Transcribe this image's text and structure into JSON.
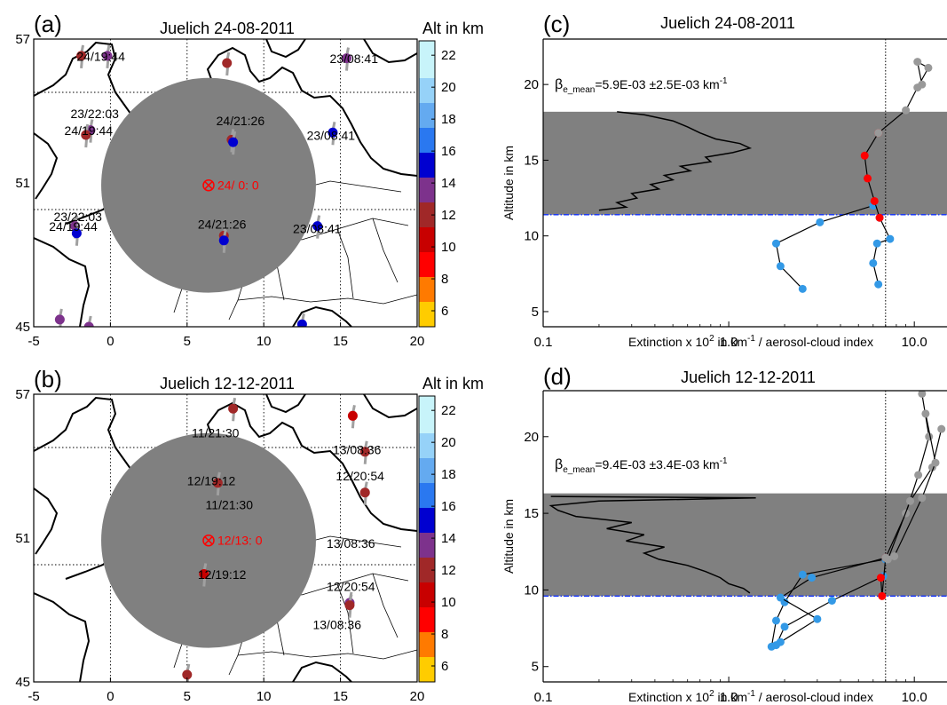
{
  "chart_data": [
    {
      "panel": "(a)",
      "type": "scatter",
      "title": "Juelich 24-08-2011",
      "colorbar_label": "Alt in km",
      "colorbar_ticks": [
        6,
        8,
        10,
        12,
        14,
        16,
        18,
        20,
        22
      ],
      "x_ticks": [
        -5,
        0,
        5,
        10,
        15,
        20
      ],
      "y_ticks": [
        45,
        51,
        57
      ],
      "xlim": [
        -5,
        20
      ],
      "ylim": [
        45,
        57
      ],
      "center": {
        "lon": 6.4,
        "lat": 50.9,
        "label": "24/ 0: 0",
        "radius_deg": 7
      },
      "points": [
        {
          "lon": -1.9,
          "lat": 56.3,
          "alt": 11
        },
        {
          "lon": -0.2,
          "lat": 56.3,
          "alt": 14
        },
        {
          "lon": 7.6,
          "lat": 56.0,
          "alt": 12
        },
        {
          "lon": 15.4,
          "lat": 56.2,
          "alt": 14
        },
        {
          "lon": -1.3,
          "lat": 53.2,
          "alt": 14
        },
        {
          "lon": -1.6,
          "lat": 53.0,
          "alt": 12
        },
        {
          "lon": 7.9,
          "lat": 52.8,
          "alt": 12
        },
        {
          "lon": 8.0,
          "lat": 52.7,
          "alt": 16
        },
        {
          "lon": 14.5,
          "lat": 53.1,
          "alt": 16
        },
        {
          "lon": -2.3,
          "lat": 49.2,
          "alt": 14
        },
        {
          "lon": -2.2,
          "lat": 48.9,
          "alt": 16
        },
        {
          "lon": 7.4,
          "lat": 48.8,
          "alt": 12
        },
        {
          "lon": 7.4,
          "lat": 48.6,
          "alt": 16
        },
        {
          "lon": 13.5,
          "lat": 49.2,
          "alt": 16
        },
        {
          "lon": -3.3,
          "lat": 45.3,
          "alt": 14
        },
        {
          "lon": -1.4,
          "lat": 45.0,
          "alt": 14
        },
        {
          "lon": 12.5,
          "lat": 45.1,
          "alt": 16
        }
      ],
      "labels": [
        {
          "lon": -2.2,
          "lat": 56.1,
          "text": "24/19:44"
        },
        {
          "lon": 14.3,
          "lat": 56.0,
          "text": "23/08:41"
        },
        {
          "lon": -2.6,
          "lat": 53.7,
          "text": "23/22:03"
        },
        {
          "lon": -3.0,
          "lat": 53.0,
          "text": "24/19:44"
        },
        {
          "lon": 6.9,
          "lat": 53.4,
          "text": "24/21:26"
        },
        {
          "lon": 12.8,
          "lat": 52.8,
          "text": "23/08:41"
        },
        {
          "lon": -3.7,
          "lat": 49.4,
          "text": "23/22:03"
        },
        {
          "lon": -4.0,
          "lat": 49.0,
          "text": "24/19:44"
        },
        {
          "lon": 5.7,
          "lat": 49.1,
          "text": "24/21:26"
        },
        {
          "lon": 11.9,
          "lat": 48.9,
          "text": "23/08:41"
        }
      ]
    },
    {
      "panel": "(b)",
      "type": "scatter",
      "title": "Juelich 12-12-2011",
      "colorbar_label": "Alt in km",
      "colorbar_ticks": [
        6,
        8,
        10,
        12,
        14,
        16,
        18,
        20,
        22
      ],
      "x_ticks": [
        -5,
        0,
        5,
        10,
        15,
        20
      ],
      "y_ticks": [
        45,
        51,
        57
      ],
      "xlim": [
        -5,
        20
      ],
      "ylim": [
        45,
        57
      ],
      "center": {
        "lon": 6.4,
        "lat": 50.9,
        "label": "12/13: 0",
        "radius_deg": 7
      },
      "points": [
        {
          "lon": 8.0,
          "lat": 56.4,
          "alt": 11
        },
        {
          "lon": 15.8,
          "lat": 56.1,
          "alt": 10
        },
        {
          "lon": 16.6,
          "lat": 54.6,
          "alt": 11
        },
        {
          "lon": 7.0,
          "lat": 53.3,
          "alt": 12
        },
        {
          "lon": 16.6,
          "lat": 52.9,
          "alt": 11
        },
        {
          "lon": 6.1,
          "lat": 49.5,
          "alt": 10
        },
        {
          "lon": 15.6,
          "lat": 48.3,
          "alt": 14
        },
        {
          "lon": 15.6,
          "lat": 48.2,
          "alt": 12
        },
        {
          "lon": 5.0,
          "lat": 45.3,
          "alt": 11
        }
      ],
      "labels": [
        {
          "lon": 5.3,
          "lat": 55.2,
          "text": "11/21:30"
        },
        {
          "lon": 14.5,
          "lat": 54.5,
          "text": "13/08:36"
        },
        {
          "lon": 5.0,
          "lat": 53.2,
          "text": "12/19:12"
        },
        {
          "lon": 14.7,
          "lat": 53.4,
          "text": "12/20:54"
        },
        {
          "lon": 6.2,
          "lat": 52.2,
          "text": "11/21:30"
        },
        {
          "lon": 14.1,
          "lat": 50.6,
          "text": "13/08:36"
        },
        {
          "lon": 5.7,
          "lat": 49.3,
          "text": "12/19:12"
        },
        {
          "lon": 14.1,
          "lat": 48.8,
          "text": "12/20:54"
        },
        {
          "lon": 13.2,
          "lat": 47.2,
          "text": "13/08:36"
        }
      ]
    },
    {
      "panel": "(c)",
      "type": "line",
      "title": "Juelich 24-08-2011",
      "xlabel_main": "Extinction x 10",
      "xlabel_sup": "2",
      "xlabel_tail": " in km",
      "xlabel_sup2": "-1",
      "xlabel_end": " / aerosol-cloud index",
      "ylabel": "Altitude in km",
      "x_scale": "log",
      "xlim": [
        0.1,
        15
      ],
      "ylim": [
        4,
        23
      ],
      "x_ticks": [
        0.1,
        1.0,
        10.0
      ],
      "x_tick_labels": [
        "0.1",
        "1.0",
        "10.0"
      ],
      "y_ticks": [
        5,
        10,
        15,
        20
      ],
      "cloud_band": [
        11.4,
        18.2
      ],
      "cloud_base": 11.4,
      "vline_x": 7.0,
      "annotation": {
        "main": "β",
        "sub": "e_mean",
        "value": "=5.9E-03 ±2.5E-03 km",
        "sup": "-1"
      },
      "extinction_profile": [
        [
          0.2,
          11.7
        ],
        [
          0.28,
          11.9
        ],
        [
          0.25,
          12.2
        ],
        [
          0.32,
          12.5
        ],
        [
          0.3,
          12.8
        ],
        [
          0.42,
          13.1
        ],
        [
          0.38,
          13.4
        ],
        [
          0.5,
          13.7
        ],
        [
          0.45,
          14.0
        ],
        [
          0.62,
          14.3
        ],
        [
          0.55,
          14.6
        ],
        [
          0.8,
          14.9
        ],
        [
          0.75,
          15.2
        ],
        [
          1.05,
          15.5
        ],
        [
          1.3,
          15.8
        ],
        [
          1.15,
          16.1
        ],
        [
          0.85,
          16.4
        ],
        [
          0.7,
          16.8
        ],
        [
          0.6,
          17.2
        ],
        [
          0.5,
          17.6
        ],
        [
          0.35,
          18.0
        ],
        [
          0.25,
          18.2
        ]
      ],
      "series": [
        {
          "color": "#3399e6",
          "points": [
            [
              2.5,
              6.5
            ],
            [
              1.9,
              8.0
            ],
            [
              1.8,
              9.5
            ],
            [
              3.1,
              10.9
            ],
            [
              6.0,
              12.0
            ]
          ]
        },
        {
          "color": "#3399e6",
          "points": [
            [
              6.4,
              6.8
            ],
            [
              6.0,
              8.2
            ],
            [
              6.3,
              9.5
            ],
            [
              7.4,
              9.8
            ],
            [
              6.5,
              11.2
            ]
          ]
        },
        {
          "color": "#ff0000",
          "points": [
            [
              6.5,
              11.2
            ],
            [
              6.1,
              12.3
            ],
            [
              5.6,
              13.8
            ],
            [
              5.4,
              15.3
            ],
            [
              6.4,
              16.8
            ]
          ]
        },
        {
          "color": "#999999",
          "points": [
            [
              6.4,
              16.8
            ],
            [
              9.0,
              18.3
            ],
            [
              10.4,
              19.8
            ],
            [
              11.9,
              21.1
            ],
            [
              10.4,
              21.5
            ],
            [
              11.0,
              20.0
            ]
          ]
        }
      ]
    },
    {
      "panel": "(d)",
      "type": "line",
      "title": "Juelich 12-12-2011",
      "xlabel_main": "Extinction x 10",
      "xlabel_sup": "2",
      "xlabel_tail": " in km",
      "xlabel_sup2": "-1",
      "xlabel_end": " / aerosol-cloud index",
      "ylabel": "Altitude in km",
      "x_scale": "log",
      "xlim": [
        0.1,
        15
      ],
      "ylim": [
        4,
        23
      ],
      "x_ticks": [
        0.1,
        1.0,
        10.0
      ],
      "x_tick_labels": [
        "0.1",
        "1.0",
        "10.0"
      ],
      "y_ticks": [
        5,
        10,
        15,
        20
      ],
      "cloud_band": [
        9.6,
        16.3
      ],
      "cloud_base": 9.6,
      "vline_x": 7.0,
      "annotation": {
        "main": "β",
        "sub": "e_mean",
        "value": "=9.4E-03 ±3.4E-03 km",
        "sup": "-1"
      },
      "extinction_profile": [
        [
          1.3,
          9.8
        ],
        [
          1.2,
          10.1
        ],
        [
          1.0,
          10.4
        ],
        [
          0.9,
          10.8
        ],
        [
          0.75,
          11.2
        ],
        [
          0.6,
          11.6
        ],
        [
          0.42,
          12.0
        ],
        [
          0.35,
          12.4
        ],
        [
          0.45,
          12.8
        ],
        [
          0.28,
          13.2
        ],
        [
          0.35,
          13.6
        ],
        [
          0.22,
          14.0
        ],
        [
          0.3,
          14.4
        ],
        [
          0.15,
          14.8
        ],
        [
          0.12,
          15.2
        ],
        [
          0.11,
          15.5
        ],
        [
          0.2,
          15.8
        ],
        [
          1.4,
          16.0
        ],
        [
          0.11,
          16.1
        ]
      ],
      "series": [
        {
          "color": "#3399e6",
          "points": [
            [
              1.7,
              6.3
            ],
            [
              1.8,
              8.0
            ],
            [
              2.0,
              9.2
            ],
            [
              2.5,
              11.0
            ],
            [
              7.0,
              12.0
            ]
          ]
        },
        {
          "color": "#3399e6",
          "points": [
            [
              1.8,
              6.4
            ],
            [
              2.0,
              7.6
            ],
            [
              3.6,
              9.3
            ],
            [
              6.8,
              10.9
            ]
          ]
        },
        {
          "color": "#3399e6",
          "points": [
            [
              1.9,
              6.6
            ],
            [
              3.0,
              8.1
            ],
            [
              1.9,
              9.5
            ],
            [
              2.8,
              10.8
            ],
            [
              7.0,
              12.1
            ]
          ]
        },
        {
          "color": "#ff0000",
          "points": [
            [
              6.6,
              10.8
            ],
            [
              6.7,
              9.6
            ],
            [
              7.0,
              12.1
            ]
          ]
        },
        {
          "color": "#999999",
          "points": [
            [
              7.0,
              12.1
            ],
            [
              9.0,
              15.0
            ],
            [
              10.5,
              17.5
            ],
            [
              12.0,
              20.0
            ],
            [
              11.0,
              22.8
            ]
          ]
        },
        {
          "color": "#999999",
          "points": [
            [
              7.2,
              12.0
            ],
            [
              9.5,
              15.8
            ],
            [
              12.5,
              18.0
            ],
            [
              14.0,
              20.5
            ]
          ]
        },
        {
          "color": "#999999",
          "points": [
            [
              7.8,
              12.2
            ],
            [
              11.0,
              16.0
            ],
            [
              13.0,
              18.3
            ],
            [
              11.5,
              21.5
            ]
          ]
        }
      ]
    }
  ]
}
